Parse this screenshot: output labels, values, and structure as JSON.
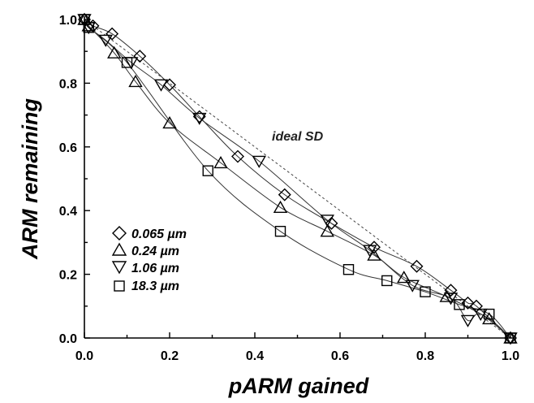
{
  "chart_data": {
    "type": "scatter",
    "xlabel": "pARM gained",
    "ylabel": "ARM remaining",
    "xlim": [
      0,
      1
    ],
    "ylim": [
      0,
      1
    ],
    "x_ticks": [
      "0.0",
      "0.2",
      "0.4",
      "0.6",
      "0.8",
      "1.0"
    ],
    "y_ticks": [
      "0.0",
      "0.2",
      "0.4",
      "0.6",
      "0.8",
      "1.0"
    ],
    "legend_position": "lower-left",
    "grid": false,
    "annotation": {
      "text": "ideal SD",
      "x": 0.44,
      "y": 0.62
    },
    "reference_line": {
      "style": "dotted",
      "x": [
        0.0,
        1.0
      ],
      "y": [
        1.0,
        0.0
      ]
    },
    "series": [
      {
        "name": "0.065 µm",
        "marker": "diamond",
        "x": [
          0.0,
          0.02,
          0.065,
          0.13,
          0.2,
          0.27,
          0.36,
          0.47,
          0.58,
          0.68,
          0.78,
          0.86,
          0.9,
          0.92,
          1.0
        ],
        "y": [
          1.0,
          0.98,
          0.955,
          0.885,
          0.795,
          0.695,
          0.57,
          0.45,
          0.36,
          0.285,
          0.225,
          0.15,
          0.11,
          0.1,
          0.0
        ]
      },
      {
        "name": "0.24 µm",
        "marker": "triangle-up",
        "x": [
          0.0,
          0.01,
          0.07,
          0.12,
          0.2,
          0.32,
          0.46,
          0.57,
          0.68,
          0.75,
          0.85,
          0.95,
          1.0
        ],
        "y": [
          1.0,
          0.98,
          0.895,
          0.805,
          0.675,
          0.55,
          0.41,
          0.335,
          0.26,
          0.19,
          0.13,
          0.06,
          0.0
        ]
      },
      {
        "name": "1.06 µm",
        "marker": "triangle-down",
        "x": [
          0.0,
          0.01,
          0.05,
          0.11,
          0.18,
          0.27,
          0.41,
          0.57,
          0.67,
          0.77,
          0.86,
          0.9,
          0.93,
          1.0
        ],
        "y": [
          1.0,
          0.975,
          0.935,
          0.865,
          0.795,
          0.69,
          0.555,
          0.37,
          0.275,
          0.165,
          0.125,
          0.055,
          0.075,
          0.0
        ]
      },
      {
        "name": "18.3 µm",
        "marker": "square",
        "x": [
          0.0,
          0.01,
          0.1,
          0.29,
          0.46,
          0.62,
          0.71,
          0.8,
          0.88,
          0.95,
          1.0
        ],
        "y": [
          1.0,
          0.975,
          0.865,
          0.525,
          0.335,
          0.215,
          0.18,
          0.145,
          0.105,
          0.075,
          0.0
        ]
      }
    ]
  },
  "legend": {
    "entries": [
      "0.065 µm",
      "0.24 µm",
      "1.06 µm",
      "18.3 µm"
    ]
  }
}
